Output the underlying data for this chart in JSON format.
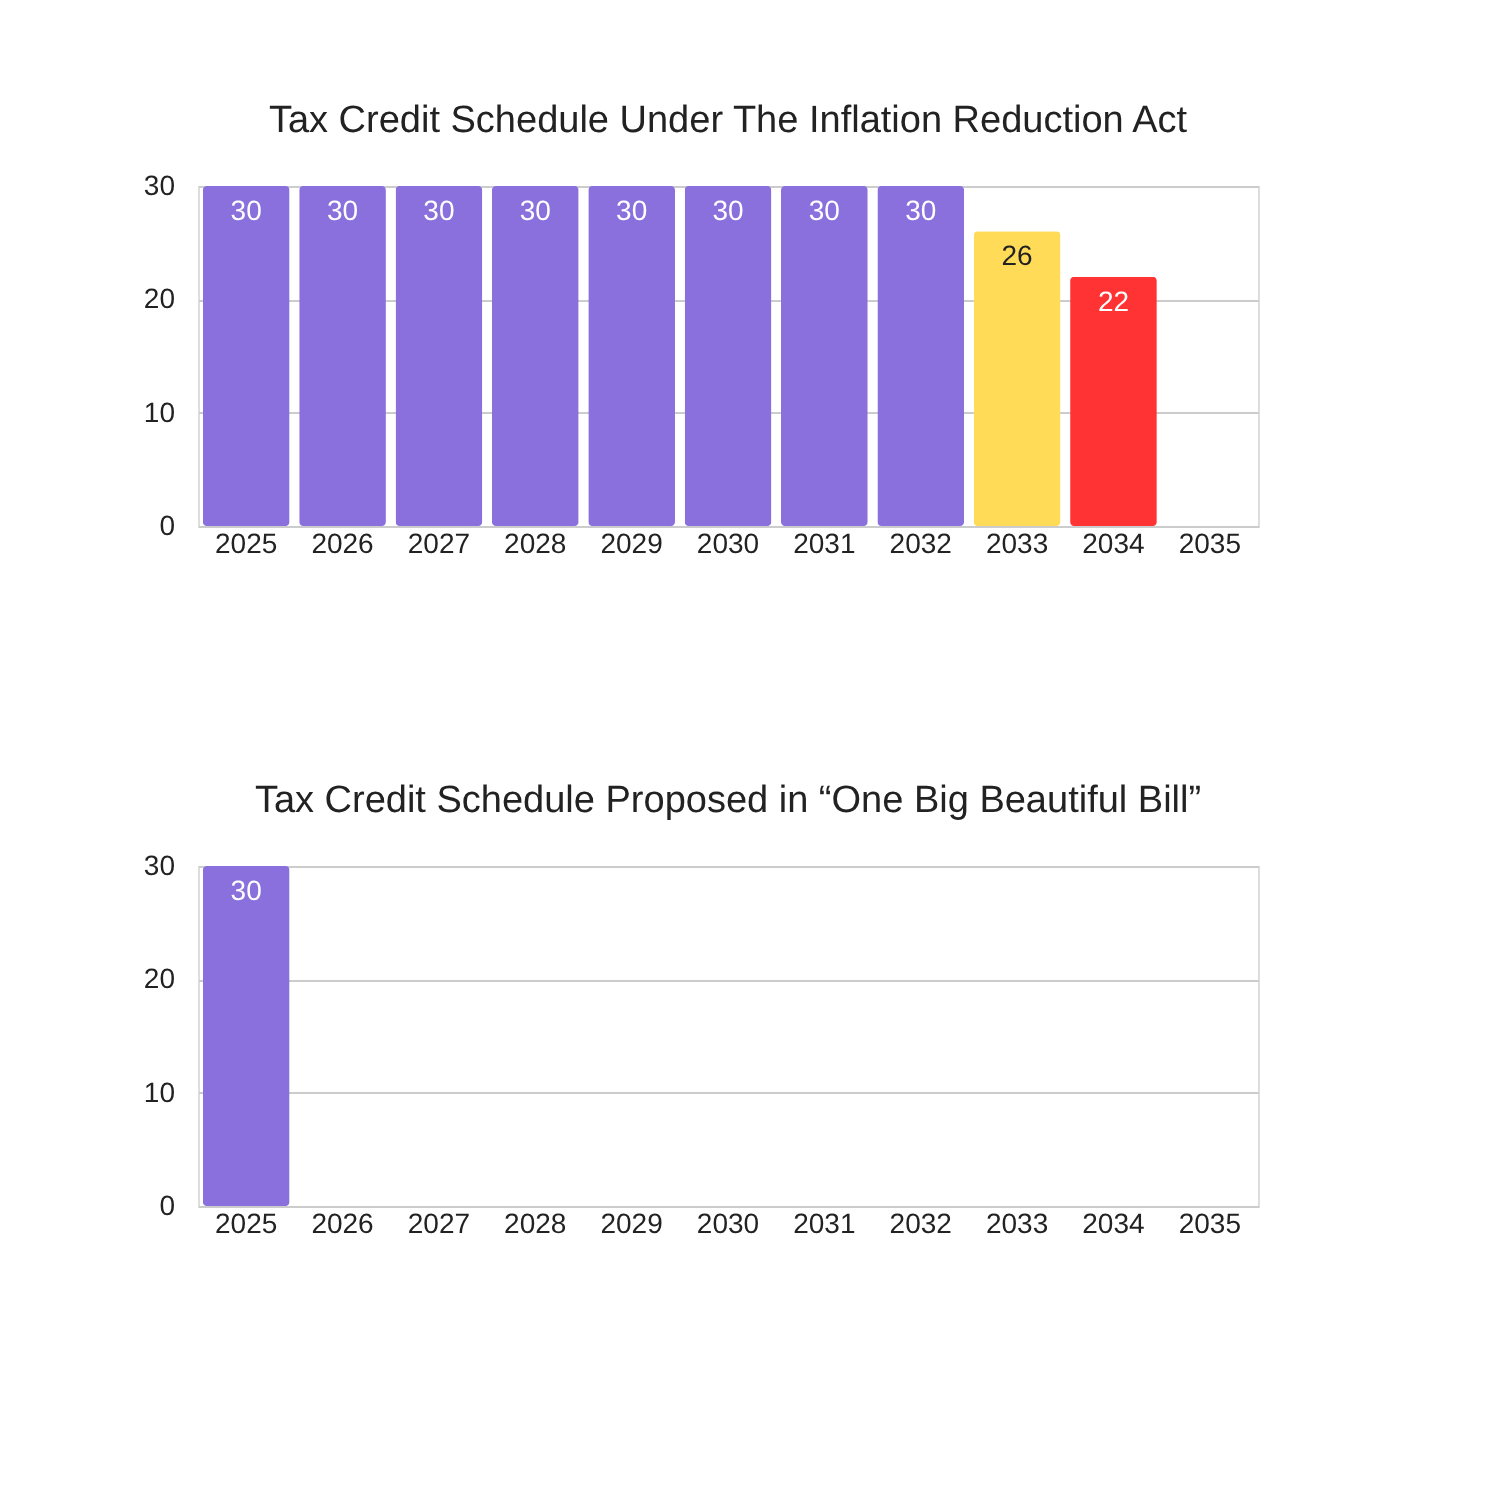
{
  "chart_data": [
    {
      "type": "bar",
      "title": "Tax Credit Schedule Under The Inflation Reduction Act",
      "categories": [
        "2025",
        "2026",
        "2027",
        "2028",
        "2029",
        "2030",
        "2031",
        "2032",
        "2033",
        "2034",
        "2035"
      ],
      "values": [
        30,
        30,
        30,
        30,
        30,
        30,
        30,
        30,
        26,
        22,
        null
      ],
      "colors": [
        "#8a70dc",
        "#8a70dc",
        "#8a70dc",
        "#8a70dc",
        "#8a70dc",
        "#8a70dc",
        "#8a70dc",
        "#8a70dc",
        "#ffdb58",
        "#ff3333",
        null
      ],
      "ylim": [
        0,
        30
      ],
      "yticks": [
        0,
        10,
        20,
        30
      ],
      "grid": "y",
      "data_labels": true
    },
    {
      "type": "bar",
      "title": "Tax Credit Schedule Proposed in “One Big Beautiful Bill”",
      "categories": [
        "2025",
        "2026",
        "2027",
        "2028",
        "2029",
        "2030",
        "2031",
        "2032",
        "2033",
        "2034",
        "2035"
      ],
      "values": [
        30,
        null,
        null,
        null,
        null,
        null,
        null,
        null,
        null,
        null,
        null
      ],
      "colors": [
        "#8a70dc",
        null,
        null,
        null,
        null,
        null,
        null,
        null,
        null,
        null,
        null
      ],
      "ylim": [
        0,
        30
      ],
      "yticks": [
        0,
        10,
        20,
        30
      ],
      "grid": "y",
      "data_labels": true
    }
  ]
}
